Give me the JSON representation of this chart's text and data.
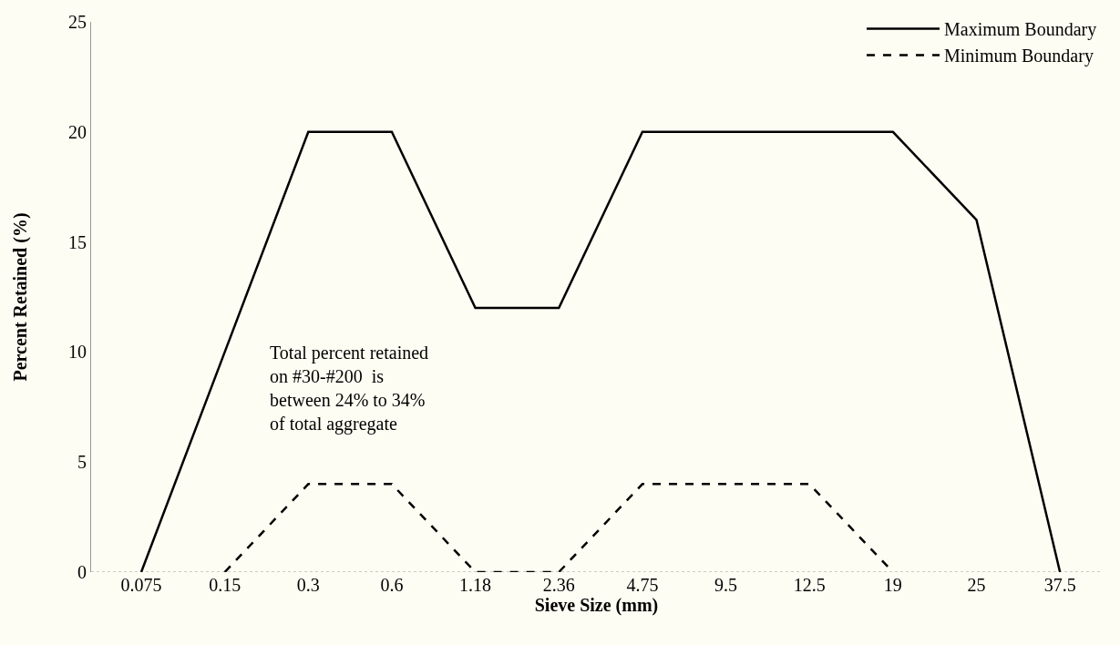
{
  "chart_data": {
    "type": "line",
    "categories": [
      "0.075",
      "0.15",
      "0.3",
      "0.6",
      "1.18",
      "2.36",
      "4.75",
      "9.5",
      "12.5",
      "19",
      "25",
      "37.5"
    ],
    "xlabel": "Sieve Size (mm)",
    "ylabel": "Percent Retained (%)",
    "ylim": [
      0,
      25
    ],
    "yticks": [
      0,
      5,
      10,
      15,
      20,
      25
    ],
    "grid": false,
    "legend": "top right",
    "marker": "none",
    "series": [
      {
        "name": "Maximum Boundary",
        "color": "#000000",
        "line_style": "solid",
        "values": [
          0,
          10,
          20,
          20,
          12,
          12,
          20,
          20,
          20,
          20,
          16,
          0
        ]
      },
      {
        "name": "Minimum Boundary",
        "color": "#000000",
        "line_style": "dashed",
        "values": [
          null,
          0,
          4,
          4,
          0,
          0,
          4,
          4,
          4,
          0,
          null,
          null
        ]
      }
    ],
    "annotations": [
      "Total percent retained\non #30-#200  is\nbetween 24% to 34%\nof total aggregate"
    ]
  }
}
